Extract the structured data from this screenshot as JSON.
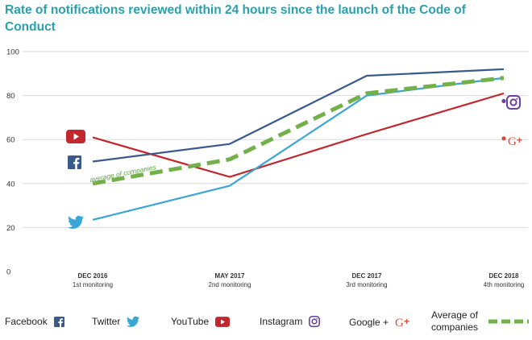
{
  "title": "Rate of notifications reviewed within 24 hours since the launch of the Code of Conduct",
  "colors": {
    "facebook": "#3b5a8c",
    "twitter": "#3aa6d6",
    "youtube": "#c1272d",
    "instagram": "#6b3fa0",
    "google": "#dc4a38",
    "average": "#72b04a",
    "grid": "#d9d9d9",
    "title": "#2aa1ad"
  },
  "chart_data": {
    "type": "line",
    "title": "Rate of notifications reviewed within 24 hours since the launch of the Code of Conduct",
    "categories": [
      "DEC 2016",
      "MAY 2017",
      "DEC 2017",
      "DEC 2018"
    ],
    "category_sublabels": [
      "1st monitoring",
      "2nd monitoring",
      "3rd monitoring",
      "4th monitoring"
    ],
    "ylim": [
      0,
      100
    ],
    "yticks": [
      0,
      20,
      40,
      60,
      80,
      100
    ],
    "grid": true,
    "series": [
      {
        "name": "Facebook",
        "key": "facebook",
        "values": [
          50,
          58,
          89,
          92
        ]
      },
      {
        "name": "Twitter",
        "key": "twitter",
        "values": [
          23.5,
          39,
          80,
          88
        ]
      },
      {
        "name": "YouTube",
        "key": "youtube",
        "values": [
          61,
          43,
          62.5,
          81
        ]
      },
      {
        "name": "Average of companies",
        "key": "average",
        "values": [
          40,
          51,
          81,
          88
        ],
        "dashed": true
      }
    ],
    "single_points": [
      {
        "name": "Instagram",
        "key": "instagram",
        "category": "DEC 2018",
        "value": 77.5
      },
      {
        "name": "Google +",
        "key": "google",
        "category": "DEC 2018",
        "value": 60.5
      }
    ],
    "annotations": [
      "average of companies"
    ]
  },
  "legend": [
    {
      "label": "Facebook",
      "icon": "facebook-icon"
    },
    {
      "label": "Twitter",
      "icon": "twitter-icon"
    },
    {
      "label": "YouTube",
      "icon": "youtube-icon"
    },
    {
      "label": "Instagram",
      "icon": "instagram-icon"
    },
    {
      "label": "Google +",
      "icon": "google-plus-icon"
    },
    {
      "label": "Average of companies",
      "icon": "dashed-line"
    }
  ]
}
